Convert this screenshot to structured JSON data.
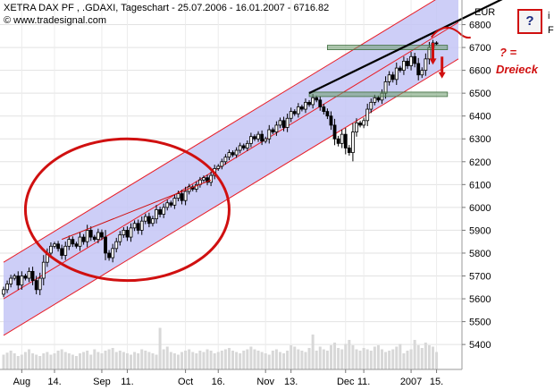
{
  "header": {
    "title": "XETRA DAX PF   , .GDAXI, Tageschart - 25.07.2006 - 16.01.2007 - 6716.82",
    "copyright": "© www.tradesignal.com"
  },
  "annotations": {
    "question": "? =",
    "dreieck": "Dreieck",
    "help": "?",
    "side_top": "i",
    "side_bottom": "F"
  },
  "chart_data": {
    "type": "candlestick",
    "title": "XETRA DAX PF   , .GDAXI, Tageschart - 25.07.2006 - 16.01.2007 - 6716.82",
    "currency_label": "EUR",
    "y_ticks": [
      5400,
      5500,
      5600,
      5700,
      5800,
      5900,
      6000,
      6100,
      6200,
      6300,
      6400,
      6500,
      6600,
      6700,
      6800
    ],
    "ylim": [
      5330,
      6900
    ],
    "x_tick_labels": [
      {
        "label": "Aug",
        "day_index": 5
      },
      {
        "label": "14.",
        "day_index": 14
      },
      {
        "label": "Sep",
        "day_index": 27
      },
      {
        "label": "11.",
        "day_index": 34
      },
      {
        "label": "Oct",
        "day_index": 50
      },
      {
        "label": "16.",
        "day_index": 59
      },
      {
        "label": "Nov",
        "day_index": 72
      },
      {
        "label": "13.",
        "day_index": 79
      },
      {
        "label": "Dec",
        "day_index": 94
      },
      {
        "label": "11.",
        "day_index": 99
      },
      {
        "label": "2007",
        "day_index": 112
      },
      {
        "label": "15.",
        "day_index": 119
      }
    ],
    "x_range_days": [
      0,
      125
    ],
    "closes": [
      5640,
      5665,
      5690,
      5700,
      5660,
      5700,
      5690,
      5720,
      5680,
      5640,
      5690,
      5760,
      5800,
      5830,
      5840,
      5820,
      5790,
      5830,
      5860,
      5840,
      5830,
      5870,
      5850,
      5900,
      5870,
      5860,
      5890,
      5870,
      5800,
      5780,
      5820,
      5850,
      5880,
      5900,
      5870,
      5910,
      5930,
      5900,
      5940,
      5960,
      5930,
      5950,
      5990,
      5970,
      6000,
      6020,
      6010,
      6040,
      6060,
      6030,
      6070,
      6090,
      6080,
      6100,
      6120,
      6130,
      6110,
      6140,
      6170,
      6180,
      6200,
      6220,
      6240,
      6230,
      6250,
      6270,
      6260,
      6280,
      6310,
      6300,
      6320,
      6290,
      6300,
      6340,
      6330,
      6360,
      6380,
      6350,
      6390,
      6420,
      6410,
      6440,
      6430,
      6460,
      6450,
      6480,
      6470,
      6440,
      6420,
      6400,
      6360,
      6300,
      6280,
      6320,
      6260,
      6240,
      6330,
      6370,
      6360,
      6380,
      6430,
      6460,
      6480,
      6470,
      6500,
      6550,
      6580,
      6560,
      6610,
      6600,
      6640,
      6620,
      6660,
      6630,
      6580,
      6600,
      6650,
      6700,
      6720,
      6717
    ],
    "volumes": [
      22,
      25,
      28,
      24,
      20,
      22,
      26,
      30,
      24,
      22,
      20,
      24,
      26,
      22,
      24,
      28,
      30,
      26,
      24,
      22,
      20,
      24,
      26,
      28,
      22,
      30,
      26,
      24,
      28,
      30,
      32,
      26,
      28,
      26,
      24,
      22,
      26,
      24,
      30,
      28,
      26,
      24,
      22,
      28,
      30,
      34,
      26,
      24,
      22,
      26,
      28,
      30,
      26,
      24,
      28,
      26,
      30,
      28,
      24,
      26,
      28,
      30,
      32,
      28,
      26,
      24,
      28,
      30,
      34,
      30,
      28,
      26,
      24,
      22,
      28,
      30,
      26,
      24,
      28,
      36,
      34,
      30,
      28,
      26,
      32,
      30,
      28,
      34,
      30,
      28,
      36,
      40,
      32,
      30,
      38,
      44,
      36,
      30,
      28,
      32,
      30,
      28,
      34,
      36,
      30,
      26,
      28,
      30,
      34,
      38,
      24,
      28,
      30,
      44,
      36,
      32,
      40,
      36,
      34,
      26
    ],
    "spike_volumes": [
      {
        "day_index": 43,
        "value": 62
      },
      {
        "day_index": 85,
        "value": 52
      }
    ],
    "channel": {
      "middle": {
        "start": {
          "day": 0,
          "value": 5600
        },
        "end": {
          "day": 125,
          "value": 6810
        }
      },
      "upper": {
        "start": {
          "day": 0,
          "value": 5760
        },
        "end": {
          "day": 125,
          "value": 6970
        }
      },
      "lower": {
        "start": {
          "day": 0,
          "value": 5440
        },
        "end": {
          "day": 125,
          "value": 6650
        }
      }
    },
    "horizontal_levels": [
      {
        "value": 6700,
        "start_day": 89,
        "end_day": 122
      },
      {
        "value": 6495,
        "start_day": 84,
        "end_day": 122
      }
    ],
    "trendline": {
      "start": {
        "day": 84,
        "value": 6500
      },
      "end": {
        "day": 142,
        "value": 6950
      }
    },
    "red_trendline": {
      "start": {
        "day": 16,
        "value": 5860
      },
      "end": {
        "day": 57,
        "value": 6120
      }
    },
    "ellipse": {
      "center_day": 34,
      "center_value": 5990,
      "radius_days": 28,
      "radius_value": 310
    },
    "colors": {
      "channel_fill": "#c4c6f6",
      "channel_line": "#e8202a",
      "levels": "#6c9a6c",
      "trendline": "#000000",
      "volume": "#d8d8d8",
      "annotation": "#d01010"
    }
  }
}
